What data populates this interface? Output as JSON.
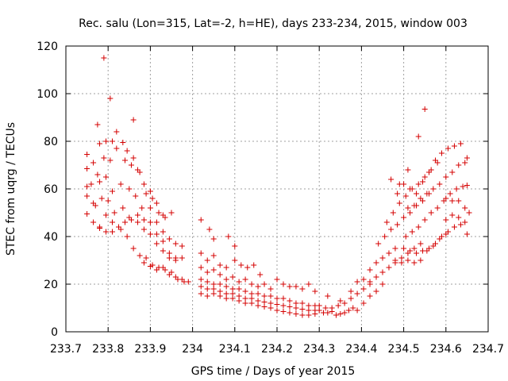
{
  "chart_data": {
    "type": "scatter",
    "title": "Rec. salu (Lon=315, Lat=-2, h=HE), days 233-234, 2015, window 003",
    "xlabel": "GPS time / Days of year 2015",
    "ylabel": "STEC from uqrg / TECUs",
    "xlim": [
      233.7,
      234.7
    ],
    "ylim": [
      0,
      120
    ],
    "x_ticks": [
      233.7,
      233.8,
      233.9,
      234,
      234.1,
      234.2,
      234.3,
      234.4,
      234.5,
      234.6,
      234.7
    ],
    "x_tick_labels": [
      "233.7",
      "233.8",
      "233.9",
      "234",
      "234.1",
      "234.2",
      "234.3",
      "234.4",
      "234.5",
      "234.6",
      "234.7"
    ],
    "y_ticks": [
      0,
      20,
      40,
      60,
      80,
      100,
      120
    ],
    "y_tick_labels": [
      "0",
      "20",
      "40",
      "60",
      "80",
      "100",
      "120"
    ],
    "grid": true,
    "marker": "plus",
    "color": "#d40000",
    "points": [
      [
        233.79,
        115
      ],
      [
        233.805,
        98
      ],
      [
        233.86,
        89
      ],
      [
        233.775,
        87
      ],
      [
        233.82,
        84
      ],
      [
        233.75,
        74.5
      ],
      [
        233.765,
        71
      ],
      [
        233.78,
        79
      ],
      [
        233.795,
        80
      ],
      [
        233.81,
        80
      ],
      [
        233.835,
        79.5
      ],
      [
        233.845,
        76
      ],
      [
        233.86,
        73
      ],
      [
        233.87,
        68
      ],
      [
        233.885,
        62
      ],
      [
        233.9,
        59
      ],
      [
        233.915,
        54
      ],
      [
        233.93,
        49
      ],
      [
        233.95,
        50
      ],
      [
        233.75,
        68.5
      ],
      [
        233.76,
        62
      ],
      [
        233.775,
        66
      ],
      [
        233.79,
        73
      ],
      [
        233.805,
        72
      ],
      [
        233.82,
        77
      ],
      [
        233.84,
        72
      ],
      [
        233.855,
        70
      ],
      [
        233.875,
        67
      ],
      [
        233.89,
        58
      ],
      [
        233.905,
        56
      ],
      [
        233.92,
        50
      ],
      [
        233.935,
        48
      ],
      [
        233.75,
        61
      ],
      [
        233.765,
        54
      ],
      [
        233.78,
        63
      ],
      [
        233.795,
        65
      ],
      [
        233.81,
        59
      ],
      [
        233.83,
        62
      ],
      [
        233.85,
        60
      ],
      [
        233.865,
        57
      ],
      [
        233.88,
        52
      ],
      [
        233.9,
        52
      ],
      [
        233.915,
        46
      ],
      [
        233.93,
        42
      ],
      [
        233.945,
        39
      ],
      [
        233.96,
        37
      ],
      [
        233.975,
        36
      ],
      [
        233.75,
        57
      ],
      [
        233.77,
        53
      ],
      [
        233.785,
        56
      ],
      [
        233.8,
        55
      ],
      [
        233.815,
        50
      ],
      [
        233.835,
        52
      ],
      [
        233.85,
        48
      ],
      [
        233.87,
        49
      ],
      [
        233.885,
        47
      ],
      [
        233.9,
        46
      ],
      [
        233.915,
        41
      ],
      [
        233.93,
        38
      ],
      [
        233.945,
        33
      ],
      [
        233.96,
        31
      ],
      [
        233.975,
        31
      ],
      [
        233.75,
        49.5
      ],
      [
        233.765,
        46
      ],
      [
        233.78,
        44
      ],
      [
        233.795,
        49
      ],
      [
        233.81,
        46
      ],
      [
        233.825,
        44
      ],
      [
        233.84,
        46
      ],
      [
        233.855,
        47
      ],
      [
        233.87,
        46
      ],
      [
        233.885,
        43
      ],
      [
        233.9,
        41
      ],
      [
        233.915,
        37
      ],
      [
        233.93,
        34
      ],
      [
        233.945,
        31
      ],
      [
        233.96,
        30
      ],
      [
        233.78,
        43.5
      ],
      [
        233.795,
        42
      ],
      [
        233.81,
        42
      ],
      [
        233.83,
        43
      ],
      [
        233.845,
        40
      ],
      [
        233.86,
        35
      ],
      [
        233.875,
        32
      ],
      [
        233.89,
        31
      ],
      [
        233.905,
        28
      ],
      [
        233.92,
        27
      ],
      [
        233.935,
        26
      ],
      [
        233.95,
        25
      ],
      [
        233.965,
        22
      ],
      [
        233.98,
        21
      ],
      [
        233.885,
        29
      ],
      [
        233.9,
        27.5
      ],
      [
        233.915,
        26
      ],
      [
        233.93,
        27
      ],
      [
        233.945,
        24
      ],
      [
        233.96,
        23
      ],
      [
        233.975,
        22
      ],
      [
        233.99,
        21
      ],
      [
        234.02,
        47
      ],
      [
        234.04,
        43
      ],
      [
        234.05,
        39
      ],
      [
        234.085,
        40
      ],
      [
        234.1,
        36
      ],
      [
        234.02,
        33
      ],
      [
        234.035,
        30
      ],
      [
        234.05,
        32
      ],
      [
        234.065,
        28
      ],
      [
        234.08,
        27
      ],
      [
        234.1,
        30
      ],
      [
        234.115,
        28
      ],
      [
        234.13,
        27
      ],
      [
        234.145,
        28
      ],
      [
        234.16,
        24
      ],
      [
        234.02,
        27
      ],
      [
        234.035,
        25
      ],
      [
        234.05,
        26
      ],
      [
        234.065,
        24
      ],
      [
        234.08,
        22
      ],
      [
        234.095,
        23
      ],
      [
        234.11,
        21
      ],
      [
        234.125,
        22
      ],
      [
        234.14,
        20
      ],
      [
        234.155,
        19
      ],
      [
        234.17,
        20
      ],
      [
        234.185,
        18
      ],
      [
        234.2,
        22
      ],
      [
        234.215,
        20
      ],
      [
        234.23,
        19
      ],
      [
        234.245,
        19
      ],
      [
        234.26,
        18
      ],
      [
        234.275,
        20
      ],
      [
        234.29,
        17
      ],
      [
        234.02,
        22
      ],
      [
        234.035,
        21
      ],
      [
        234.05,
        20
      ],
      [
        234.065,
        20
      ],
      [
        234.08,
        19
      ],
      [
        234.095,
        18
      ],
      [
        234.11,
        18
      ],
      [
        234.125,
        17
      ],
      [
        234.14,
        16
      ],
      [
        234.155,
        16
      ],
      [
        234.17,
        15
      ],
      [
        234.185,
        15
      ],
      [
        234.2,
        14
      ],
      [
        234.215,
        14
      ],
      [
        234.23,
        13
      ],
      [
        234.245,
        12
      ],
      [
        234.26,
        12
      ],
      [
        234.275,
        11
      ],
      [
        234.29,
        11
      ],
      [
        234.02,
        19
      ],
      [
        234.035,
        18
      ],
      [
        234.05,
        18
      ],
      [
        234.065,
        17
      ],
      [
        234.08,
        16
      ],
      [
        234.095,
        16
      ],
      [
        234.11,
        15
      ],
      [
        234.125,
        14
      ],
      [
        234.14,
        14
      ],
      [
        234.155,
        13
      ],
      [
        234.17,
        12.5
      ],
      [
        234.185,
        12
      ],
      [
        234.2,
        11.5
      ],
      [
        234.215,
        11
      ],
      [
        234.23,
        10.5
      ],
      [
        234.245,
        10
      ],
      [
        234.26,
        9.5
      ],
      [
        234.275,
        9
      ],
      [
        234.29,
        9
      ],
      [
        234.02,
        16
      ],
      [
        234.035,
        15
      ],
      [
        234.05,
        16
      ],
      [
        234.065,
        15
      ],
      [
        234.08,
        14
      ],
      [
        234.095,
        14
      ],
      [
        234.11,
        13
      ],
      [
        234.125,
        12
      ],
      [
        234.14,
        12
      ],
      [
        234.155,
        11
      ],
      [
        234.17,
        10.5
      ],
      [
        234.185,
        10
      ],
      [
        234.2,
        9
      ],
      [
        234.215,
        8.5
      ],
      [
        234.23,
        8
      ],
      [
        234.245,
        7.5
      ],
      [
        234.26,
        7
      ],
      [
        234.275,
        7
      ],
      [
        234.29,
        7.5
      ],
      [
        234.3,
        9
      ],
      [
        234.31,
        8
      ],
      [
        234.32,
        8
      ],
      [
        234.33,
        8.5
      ],
      [
        234.34,
        7
      ],
      [
        234.35,
        7.5
      ],
      [
        234.36,
        8
      ],
      [
        234.37,
        9
      ],
      [
        234.38,
        10
      ],
      [
        234.3,
        11
      ],
      [
        234.315,
        10
      ],
      [
        234.33,
        10
      ],
      [
        234.345,
        11
      ],
      [
        234.36,
        12
      ],
      [
        234.375,
        14
      ],
      [
        234.39,
        16
      ],
      [
        234.405,
        18
      ],
      [
        234.42,
        20
      ],
      [
        234.32,
        15
      ],
      [
        234.35,
        13
      ],
      [
        234.375,
        17
      ],
      [
        234.39,
        21
      ],
      [
        234.405,
        22
      ],
      [
        234.39,
        9
      ],
      [
        234.405,
        12
      ],
      [
        234.42,
        15
      ],
      [
        234.435,
        17
      ],
      [
        234.45,
        20
      ],
      [
        234.42,
        26
      ],
      [
        234.435,
        29
      ],
      [
        234.45,
        31
      ],
      [
        234.465,
        33
      ],
      [
        234.48,
        35
      ],
      [
        234.42,
        21
      ],
      [
        234.435,
        23
      ],
      [
        234.45,
        25
      ],
      [
        234.465,
        27
      ],
      [
        234.48,
        29
      ],
      [
        234.495,
        31
      ],
      [
        234.51,
        33
      ],
      [
        234.525,
        35
      ],
      [
        234.54,
        37
      ],
      [
        234.44,
        37
      ],
      [
        234.455,
        40
      ],
      [
        234.47,
        43
      ],
      [
        234.485,
        45
      ],
      [
        234.5,
        48
      ],
      [
        234.515,
        50
      ],
      [
        234.53,
        53
      ],
      [
        234.545,
        55
      ],
      [
        234.56,
        58
      ],
      [
        234.46,
        46
      ],
      [
        234.475,
        50
      ],
      [
        234.49,
        54
      ],
      [
        234.505,
        57
      ],
      [
        234.52,
        60
      ],
      [
        234.535,
        62
      ],
      [
        234.55,
        65
      ],
      [
        234.565,
        68
      ],
      [
        234.58,
        71
      ],
      [
        234.47,
        64
      ],
      [
        234.485,
        58
      ],
      [
        234.5,
        62
      ],
      [
        234.515,
        60
      ],
      [
        234.53,
        58
      ],
      [
        234.545,
        63
      ],
      [
        234.56,
        67
      ],
      [
        234.575,
        72
      ],
      [
        234.59,
        75
      ],
      [
        234.605,
        77
      ],
      [
        234.62,
        78
      ],
      [
        234.635,
        79
      ],
      [
        234.65,
        73
      ],
      [
        234.5,
        35
      ],
      [
        234.515,
        34
      ],
      [
        234.53,
        33
      ],
      [
        234.545,
        34
      ],
      [
        234.56,
        35
      ],
      [
        234.575,
        37
      ],
      [
        234.59,
        40
      ],
      [
        234.605,
        42
      ],
      [
        234.62,
        44
      ],
      [
        234.635,
        45
      ],
      [
        234.65,
        41
      ],
      [
        234.48,
        30
      ],
      [
        234.495,
        29
      ],
      [
        234.51,
        30
      ],
      [
        234.525,
        29
      ],
      [
        234.54,
        30
      ],
      [
        234.555,
        34
      ],
      [
        234.57,
        36
      ],
      [
        234.585,
        39
      ],
      [
        234.6,
        41
      ],
      [
        234.505,
        40
      ],
      [
        234.52,
        42
      ],
      [
        234.535,
        44
      ],
      [
        234.55,
        47
      ],
      [
        234.565,
        50
      ],
      [
        234.58,
        52
      ],
      [
        234.595,
        55
      ],
      [
        234.61,
        58
      ],
      [
        234.625,
        60
      ],
      [
        234.64,
        61
      ],
      [
        234.65,
        61.5
      ],
      [
        234.51,
        52
      ],
      [
        234.525,
        53
      ],
      [
        234.54,
        56
      ],
      [
        234.555,
        58
      ],
      [
        234.57,
        60
      ],
      [
        234.585,
        62
      ],
      [
        234.6,
        65
      ],
      [
        234.615,
        67
      ],
      [
        234.63,
        70
      ],
      [
        234.645,
        71
      ],
      [
        234.55,
        93.5
      ],
      [
        234.535,
        82
      ],
      [
        234.51,
        68
      ],
      [
        234.49,
        62
      ],
      [
        234.6,
        56
      ],
      [
        234.615,
        55
      ],
      [
        234.63,
        55
      ],
      [
        234.645,
        52
      ],
      [
        234.655,
        50
      ],
      [
        234.6,
        47
      ],
      [
        234.615,
        49
      ],
      [
        234.63,
        48
      ],
      [
        234.645,
        46
      ]
    ]
  }
}
